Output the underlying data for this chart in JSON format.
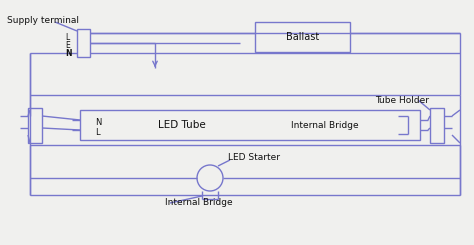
{
  "bg_color": "#f0f0ee",
  "line_color": "#7777cc",
  "text_color": "#111111",
  "line_width": 1.0,
  "supply_terminal_label": "Supply terminal",
  "ballast_label": "Ballast",
  "tube_holder_label": "Tube Holder",
  "led_tube_label": "LED Tube",
  "internal_bridge_label1": "Internal Bridge",
  "internal_bridge_label2": "Internal Bridge",
  "led_starter_label": "LED Starter",
  "L_label": "L",
  "E_label": "E",
  "N_label": "N",
  "N2_label": "N",
  "L2_label": "L",
  "figw": 4.74,
  "figh": 2.45,
  "dpi": 100
}
